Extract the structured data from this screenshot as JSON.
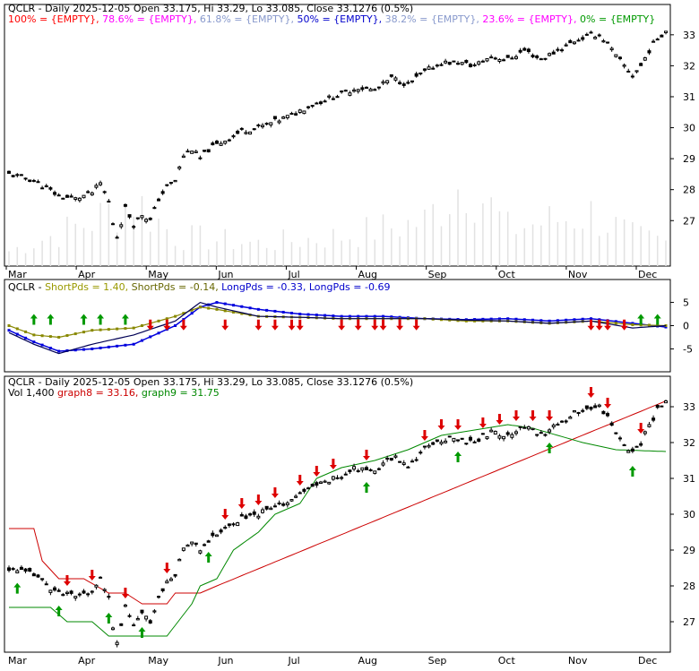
{
  "chart_data": [
    {
      "type": "candlestick",
      "title": "QCLR - Daily 2025-12-05 Open 33.175, Hi 33.29, Lo 33.085, Close 33.1276 (0.5%)",
      "fib_legend": [
        {
          "text": "100% = {EMPTY},",
          "color": "#ff0000"
        },
        {
          "text": "78.6% = {EMPTY},",
          "color": "#ff00ff"
        },
        {
          "text": "61.8% = {EMPTY},",
          "color": "#8899cc"
        },
        {
          "text": "50% = {EMPTY},",
          "color": "#0000cc"
        },
        {
          "text": "38.2% = {EMPTY},",
          "color": "#8899cc"
        },
        {
          "text": "23.6% = {EMPTY},",
          "color": "#ff00ff"
        },
        {
          "text": "0% = {EMPTY}",
          "color": "#009900"
        }
      ],
      "x_labels": [
        "Mar",
        "Apr",
        "May",
        "Jun",
        "Jul",
        "Aug",
        "Sep",
        "Oct",
        "Nov",
        "Dec"
      ],
      "y_ticks": [
        27,
        28,
        29,
        30,
        31,
        32,
        33
      ],
      "ylim": [
        26.4,
        33.4
      ],
      "price_path": [
        [
          0,
          28.5
        ],
        [
          6,
          28.3
        ],
        [
          12,
          27.8
        ],
        [
          16,
          27.7
        ],
        [
          20,
          27.9
        ],
        [
          22,
          28.2
        ],
        [
          24,
          27.6
        ],
        [
          25,
          26.9
        ],
        [
          26,
          26.5
        ],
        [
          28,
          27.4
        ],
        [
          30,
          26.9
        ],
        [
          32,
          27.2
        ],
        [
          34,
          27.0
        ],
        [
          36,
          27.7
        ],
        [
          38,
          28.1
        ],
        [
          40,
          28.3
        ],
        [
          42,
          29.1
        ],
        [
          44,
          29.3
        ],
        [
          46,
          29.0
        ],
        [
          48,
          29.3
        ],
        [
          52,
          29.6
        ],
        [
          56,
          29.9
        ],
        [
          60,
          30.0
        ],
        [
          64,
          30.2
        ],
        [
          68,
          30.4
        ],
        [
          72,
          30.7
        ],
        [
          76,
          30.9
        ],
        [
          80,
          31.1
        ],
        [
          84,
          31.3
        ],
        [
          88,
          31.2
        ],
        [
          92,
          31.6
        ],
        [
          96,
          31.4
        ],
        [
          100,
          31.8
        ],
        [
          104,
          32.1
        ],
        [
          108,
          32.1
        ],
        [
          112,
          32.0
        ],
        [
          116,
          32.3
        ],
        [
          120,
          32.2
        ],
        [
          124,
          32.5
        ],
        [
          128,
          32.2
        ],
        [
          132,
          32.5
        ],
        [
          136,
          32.8
        ],
        [
          140,
          33.0
        ],
        [
          142,
          33.0
        ],
        [
          144,
          32.7
        ],
        [
          146,
          32.3
        ],
        [
          148,
          32.0
        ],
        [
          150,
          31.7
        ],
        [
          152,
          32.0
        ],
        [
          154,
          32.5
        ],
        [
          156,
          32.9
        ],
        [
          158,
          33.13
        ]
      ],
      "volume_path": [
        [
          0,
          200
        ],
        [
          20,
          600
        ],
        [
          30,
          900
        ],
        [
          40,
          400
        ],
        [
          60,
          300
        ],
        [
          80,
          400
        ],
        [
          100,
          600
        ],
        [
          110,
          1200
        ],
        [
          120,
          500
        ],
        [
          140,
          700
        ],
        [
          150,
          400
        ],
        [
          158,
          300
        ]
      ]
    },
    {
      "type": "line",
      "title_parts": [
        {
          "text": "QCLR - ",
          "color": "#000000"
        },
        {
          "text": "ShortPds = 1.40,",
          "color": "#999900"
        },
        {
          "text": "ShortPds = -0.14,",
          "color": "#666600"
        },
        {
          "text": "LongPds = -0.33,",
          "color": "#0000cc"
        },
        {
          "text": "LongPds = -0.69",
          "color": "#0000cc"
        }
      ],
      "y_ticks": [
        5,
        0,
        -5
      ],
      "ylim": [
        -8,
        8
      ],
      "series": [
        {
          "color": "#0000dd",
          "values": [
            [
              0,
              -1
            ],
            [
              6,
              -3.5
            ],
            [
              12,
              -5.5
            ],
            [
              20,
              -5
            ],
            [
              30,
              -4
            ],
            [
              40,
              0
            ],
            [
              46,
              4
            ],
            [
              50,
              5
            ],
            [
              60,
              3.5
            ],
            [
              70,
              2.5
            ],
            [
              80,
              2
            ],
            [
              90,
              2
            ],
            [
              100,
              1.5
            ],
            [
              110,
              1.3
            ],
            [
              120,
              1.5
            ],
            [
              130,
              1
            ],
            [
              140,
              1.5
            ],
            [
              150,
              0.5
            ],
            [
              158,
              -0.3
            ]
          ]
        },
        {
          "color": "#888800",
          "values": [
            [
              0,
              0
            ],
            [
              6,
              -2
            ],
            [
              12,
              -2.5
            ],
            [
              20,
              -1
            ],
            [
              30,
              -0.5
            ],
            [
              40,
              2
            ],
            [
              46,
              4
            ],
            [
              50,
              3.5
            ],
            [
              60,
              2
            ],
            [
              70,
              1.8
            ],
            [
              80,
              1.5
            ],
            [
              90,
              1.5
            ],
            [
              100,
              1.5
            ],
            [
              110,
              1
            ],
            [
              120,
              1
            ],
            [
              130,
              0.5
            ],
            [
              140,
              1
            ],
            [
              150,
              0.2
            ],
            [
              158,
              0
            ]
          ]
        },
        {
          "color": "#000055",
          "values": [
            [
              0,
              -1.5
            ],
            [
              6,
              -4
            ],
            [
              12,
              -6
            ],
            [
              20,
              -4
            ],
            [
              30,
              -2
            ],
            [
              40,
              1
            ],
            [
              46,
              5
            ],
            [
              50,
              4
            ],
            [
              60,
              2
            ],
            [
              70,
              1.8
            ],
            [
              80,
              1.5
            ],
            [
              90,
              1.5
            ],
            [
              100,
              1.5
            ],
            [
              110,
              1.2
            ],
            [
              120,
              1
            ],
            [
              130,
              0.5
            ],
            [
              140,
              1
            ],
            [
              150,
              -0.5
            ],
            [
              158,
              0
            ]
          ]
        }
      ],
      "up_arrows_x": [
        6,
        10,
        18,
        22,
        28,
        152,
        156
      ],
      "down_arrows_x": [
        34,
        38,
        42,
        52,
        60,
        64,
        68,
        70,
        80,
        84,
        88,
        90,
        94,
        98,
        140,
        142,
        144,
        148
      ]
    },
    {
      "type": "candlestick",
      "title": "QCLR - Daily 2025-12-05 Open 33.175, Hi 33.29, Lo 33.085, Close 33.1276 (0.5%)",
      "legend": [
        {
          "text": "Vol 1,400",
          "color": "#000000"
        },
        {
          "text": "graph8 = 33.16,",
          "color": "#cc0000"
        },
        {
          "text": "graph9 = 31.75",
          "color": "#008800"
        }
      ],
      "y_ticks": [
        27,
        28,
        29,
        30,
        31,
        32,
        33
      ],
      "ylim": [
        26.4,
        33.6
      ],
      "graph8_path": [
        [
          0,
          29.6
        ],
        [
          6,
          29.6
        ],
        [
          8,
          28.7
        ],
        [
          12,
          28.2
        ],
        [
          18,
          28.2
        ],
        [
          24,
          27.8
        ],
        [
          28,
          27.8
        ],
        [
          32,
          27.5
        ],
        [
          38,
          27.5
        ],
        [
          40,
          27.8
        ],
        [
          46,
          27.8
        ],
        [
          50,
          28.0
        ],
        [
          158,
          33.16
        ]
      ],
      "graph9_path": [
        [
          0,
          27.4
        ],
        [
          10,
          27.4
        ],
        [
          14,
          27.0
        ],
        [
          20,
          27.0
        ],
        [
          24,
          26.6
        ],
        [
          38,
          26.6
        ],
        [
          44,
          27.5
        ],
        [
          46,
          28.0
        ],
        [
          50,
          28.2
        ],
        [
          54,
          29.0
        ],
        [
          60,
          29.5
        ],
        [
          64,
          30.0
        ],
        [
          70,
          30.3
        ],
        [
          74,
          31.0
        ],
        [
          80,
          31.3
        ],
        [
          88,
          31.5
        ],
        [
          96,
          31.8
        ],
        [
          104,
          32.2
        ],
        [
          120,
          32.5
        ],
        [
          126,
          32.4
        ],
        [
          138,
          32.0
        ],
        [
          146,
          31.8
        ],
        [
          158,
          31.75
        ]
      ],
      "up_arrows_x": [
        2,
        12,
        24,
        32,
        48,
        86,
        108,
        130,
        150
      ],
      "down_arrows_x": [
        14,
        20,
        28,
        38,
        52,
        56,
        60,
        64,
        70,
        74,
        78,
        86,
        100,
        104,
        108,
        114,
        118,
        122,
        126,
        130,
        140,
        144,
        152
      ]
    }
  ]
}
